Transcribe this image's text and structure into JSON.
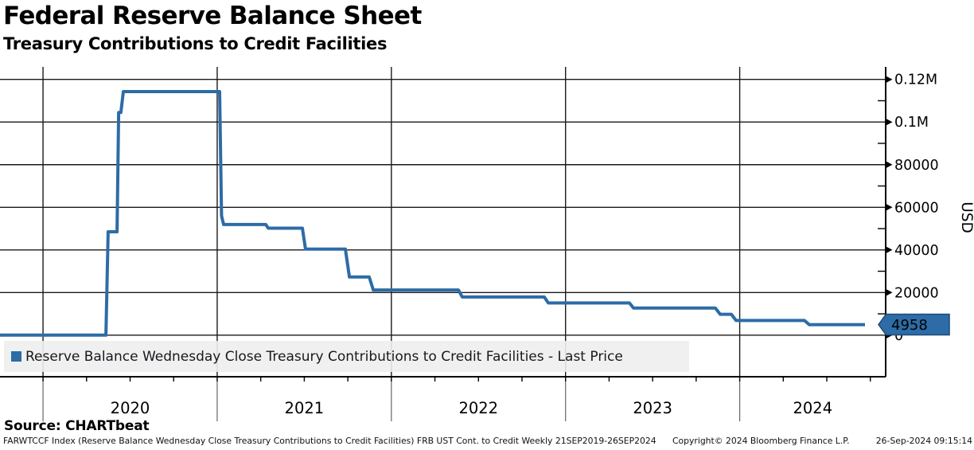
{
  "header": {
    "title": "Federal Reserve Balance Sheet",
    "subtitle": "Treasury Contributions to Credit Facilities"
  },
  "legend": {
    "label": "Reserve Balance Wednesday Close Treasury Contributions to Credit Facilities - Last Price",
    "swatch_color": "#2d6ca6"
  },
  "source_line": "Source: CHARTbeat",
  "footer": {
    "left": "FARWTCCF Index (Reserve Balance Wednesday Close Treasury Contributions to Credit Facilities) FRB UST Cont. to Credit  Weekly 21SEP2019-26SEP2024",
    "copyright": "Copyright© 2024 Bloomberg Finance L.P.",
    "timestamp": "26-Sep-2024 09:15:14"
  },
  "last_price_badge": {
    "value": "4958",
    "fill": "#2d6ca6",
    "border": "#1b4a7a",
    "text_color": "#ffffff"
  },
  "chart_data": {
    "type": "line",
    "title": "Federal Reserve Balance Sheet - Treasury Contributions to Credit Facilities",
    "ylabel": "USD",
    "grid": true,
    "legend_position": "bottom-left",
    "x_axis": {
      "min_year": 2019.753,
      "max_year": 2024.838,
      "year_gridlines": [
        2020,
        2021,
        2022,
        2023,
        2024
      ],
      "year_labels": [
        "2020",
        "2021",
        "2022",
        "2023",
        "2024"
      ],
      "minor_tick_step_years": 0.25
    },
    "y_axis": {
      "min": -19500,
      "max": 125500,
      "ticks": [
        {
          "value": 0,
          "label": "0"
        },
        {
          "value": 20000,
          "label": "20000"
        },
        {
          "value": 40000,
          "label": "40000"
        },
        {
          "value": 60000,
          "label": "60000"
        },
        {
          "value": 80000,
          "label": "80000"
        },
        {
          "value": 100000,
          "label": "0.1M"
        },
        {
          "value": 120000,
          "label": "0.12M"
        }
      ],
      "minor_ticks": [
        10000,
        30000,
        50000,
        70000,
        90000,
        110000
      ]
    },
    "series": [
      {
        "name": "Reserve Balance Wednesday Close Treasury Contributions to Credit Facilities - Last Price",
        "color": "#2d6ca6",
        "last_price": 4958,
        "points": [
          {
            "date": "2019-09-21",
            "t": 2019.72,
            "v": 0
          },
          {
            "date": "2020-05-06",
            "t": 2020.361,
            "v": 0
          },
          {
            "date": "2020-05-13",
            "t": 2020.374,
            "v": 48500
          },
          {
            "date": "2020-06-03",
            "t": 2020.425,
            "v": 48500
          },
          {
            "date": "2020-06-10",
            "t": 2020.434,
            "v": 104500
          },
          {
            "date": "2020-06-17",
            "t": 2020.447,
            "v": 104500
          },
          {
            "date": "2020-06-24",
            "t": 2020.461,
            "v": 114300
          },
          {
            "date": "2021-01-06",
            "t": 2021.014,
            "v": 114300
          },
          {
            "date": "2021-01-10",
            "t": 2021.025,
            "v": 56000
          },
          {
            "date": "2021-01-13",
            "t": 2021.037,
            "v": 51900
          },
          {
            "date": "2021-04-14",
            "t": 2021.279,
            "v": 51900
          },
          {
            "date": "2021-04-21",
            "t": 2021.293,
            "v": 50200
          },
          {
            "date": "2021-06-30",
            "t": 2021.489,
            "v": 50200
          },
          {
            "date": "2021-07-07",
            "t": 2021.507,
            "v": 40400
          },
          {
            "date": "2021-09-29",
            "t": 2021.736,
            "v": 40400
          },
          {
            "date": "2021-10-06",
            "t": 2021.759,
            "v": 27300
          },
          {
            "date": "2021-11-17",
            "t": 2021.873,
            "v": 27300
          },
          {
            "date": "2021-11-24",
            "t": 2021.896,
            "v": 21200
          },
          {
            "date": "2022-05-18",
            "t": 2022.385,
            "v": 21200
          },
          {
            "date": "2022-05-25",
            "t": 2022.407,
            "v": 17900
          },
          {
            "date": "2022-11-16",
            "t": 2022.878,
            "v": 17900
          },
          {
            "date": "2022-11-23",
            "t": 2022.901,
            "v": 15100
          },
          {
            "date": "2023-05-10",
            "t": 2023.367,
            "v": 15100
          },
          {
            "date": "2023-05-17",
            "t": 2023.39,
            "v": 12700
          },
          {
            "date": "2023-11-08",
            "t": 2023.86,
            "v": 12700
          },
          {
            "date": "2023-11-15",
            "t": 2023.888,
            "v": 9800
          },
          {
            "date": "2023-12-13",
            "t": 2023.952,
            "v": 9800
          },
          {
            "date": "2023-12-20",
            "t": 2023.979,
            "v": 6900
          },
          {
            "date": "2024-05-15",
            "t": 2024.372,
            "v": 6900
          },
          {
            "date": "2024-05-22",
            "t": 2024.399,
            "v": 4958
          },
          {
            "date": "2024-09-26",
            "t": 2024.719,
            "v": 4958
          }
        ]
      }
    ]
  }
}
